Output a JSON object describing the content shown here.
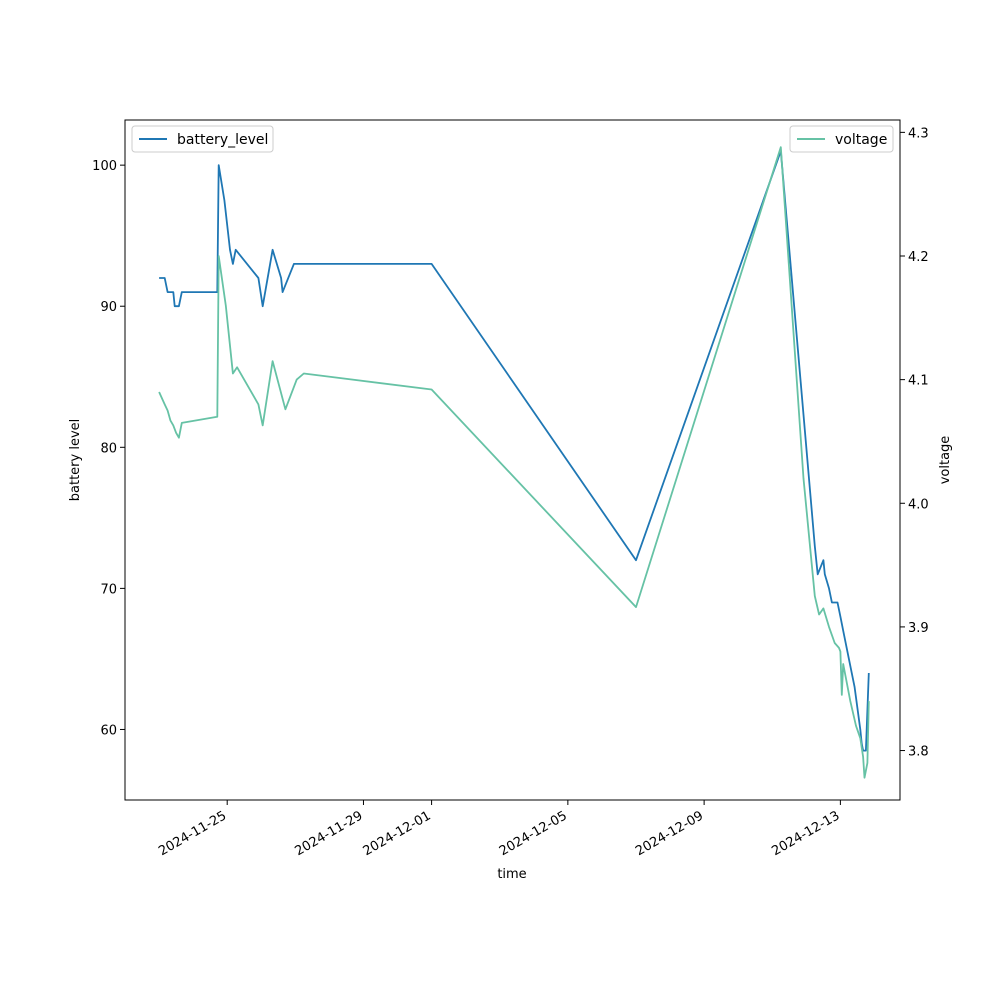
{
  "chart_data": {
    "type": "line",
    "title": "",
    "xlabel": "time",
    "ylabel": "battery level",
    "y2label": "voltage",
    "x_range": [
      "2024-11-22T00:00",
      "2024-12-14T18:00"
    ],
    "ylim": [
      55,
      103.2
    ],
    "y2lim": [
      3.76,
      4.31
    ],
    "x_ticks": [
      "2024-11-25",
      "2024-11-29",
      "2024-12-01",
      "2024-12-05",
      "2024-12-09",
      "2024-12-13"
    ],
    "y_ticks": [
      60,
      70,
      80,
      90,
      100
    ],
    "y2_ticks": [
      3.8,
      3.9,
      4.0,
      4.1,
      4.2,
      4.3
    ],
    "y2_tick_labels": [
      "3.8",
      "3.9",
      "4.0",
      "4.1",
      "4.2",
      "4.3"
    ],
    "grid": false,
    "legend_left": "top-left",
    "legend_right": "top-right",
    "series": [
      {
        "name": "battery_level",
        "axis": "left",
        "color": "#1f77b4",
        "points": [
          [
            "2024-11-23T00:00",
            92
          ],
          [
            "2024-11-23T04:00",
            92
          ],
          [
            "2024-11-23T06:00",
            91
          ],
          [
            "2024-11-23T10:00",
            91
          ],
          [
            "2024-11-23T11:00",
            90
          ],
          [
            "2024-11-23T14:00",
            90
          ],
          [
            "2024-11-23T16:00",
            91
          ],
          [
            "2024-11-24T17:00",
            91
          ],
          [
            "2024-11-24T18:00",
            100
          ],
          [
            "2024-11-24T22:00",
            97.5
          ],
          [
            "2024-11-25T02:00",
            94
          ],
          [
            "2024-11-25T04:00",
            93
          ],
          [
            "2024-11-25T06:00",
            94
          ],
          [
            "2024-11-25T22:00",
            92
          ],
          [
            "2024-11-26T01:00",
            90
          ],
          [
            "2024-11-26T08:00",
            94
          ],
          [
            "2024-11-26T14:00",
            92
          ],
          [
            "2024-11-26T15:00",
            91
          ],
          [
            "2024-11-26T23:00",
            93
          ],
          [
            "2024-12-01T00:00",
            93
          ],
          [
            "2024-12-07T00:00",
            72
          ],
          [
            "2024-12-11T06:00",
            101
          ],
          [
            "2024-12-12T06:00",
            73
          ],
          [
            "2024-12-12T08:00",
            71
          ],
          [
            "2024-12-12T12:00",
            72
          ],
          [
            "2024-12-12T13:00",
            71
          ],
          [
            "2024-12-12T16:00",
            70
          ],
          [
            "2024-12-12T18:00",
            69
          ],
          [
            "2024-12-12T22:00",
            69
          ],
          [
            "2024-12-13T00:00",
            68
          ],
          [
            "2024-12-13T02:00",
            67
          ],
          [
            "2024-12-13T06:00",
            65
          ],
          [
            "2024-12-13T10:00",
            63
          ],
          [
            "2024-12-13T14:00",
            60
          ],
          [
            "2024-12-13T15:00",
            59
          ],
          [
            "2024-12-13T16:00",
            58.5
          ],
          [
            "2024-12-13T18:00",
            58.5
          ],
          [
            "2024-12-13T20:00",
            64
          ]
        ]
      },
      {
        "name": "voltage",
        "axis": "right",
        "color": "#66c2a5",
        "points": [
          [
            "2024-11-23T00:00",
            4.09
          ],
          [
            "2024-11-23T04:00",
            4.08
          ],
          [
            "2024-11-23T06:00",
            4.075
          ],
          [
            "2024-11-23T08:00",
            4.067
          ],
          [
            "2024-11-23T10:00",
            4.063
          ],
          [
            "2024-11-23T12:00",
            4.057
          ],
          [
            "2024-11-23T14:00",
            4.053
          ],
          [
            "2024-11-23T16:00",
            4.065
          ],
          [
            "2024-11-24T17:00",
            4.07
          ],
          [
            "2024-11-24T18:00",
            4.2
          ],
          [
            "2024-11-24T23:00",
            4.16
          ],
          [
            "2024-11-25T04:00",
            4.105
          ],
          [
            "2024-11-25T07:00",
            4.11
          ],
          [
            "2024-11-25T22:00",
            4.08
          ],
          [
            "2024-11-26T01:00",
            4.063
          ],
          [
            "2024-11-26T08:00",
            4.115
          ],
          [
            "2024-11-26T17:00",
            4.076
          ],
          [
            "2024-11-27T01:00",
            4.1
          ],
          [
            "2024-11-27T06:00",
            4.105
          ],
          [
            "2024-12-01T00:00",
            4.092
          ],
          [
            "2024-12-07T00:00",
            3.916
          ],
          [
            "2024-12-11T06:00",
            4.288
          ],
          [
            "2024-12-11T22:00",
            4.02
          ],
          [
            "2024-12-12T06:00",
            3.925
          ],
          [
            "2024-12-12T09:00",
            3.91
          ],
          [
            "2024-12-12T12:00",
            3.915
          ],
          [
            "2024-12-12T16:00",
            3.9
          ],
          [
            "2024-12-12T20:00",
            3.887
          ],
          [
            "2024-12-12T23:00",
            3.883
          ],
          [
            "2024-12-13T00:00",
            3.88
          ],
          [
            "2024-12-13T01:00",
            3.845
          ],
          [
            "2024-12-13T02:00",
            3.87
          ],
          [
            "2024-12-13T07:00",
            3.84
          ],
          [
            "2024-12-13T11:00",
            3.82
          ],
          [
            "2024-12-13T14:00",
            3.81
          ],
          [
            "2024-12-13T16:00",
            3.795
          ],
          [
            "2024-12-13T17:00",
            3.778
          ],
          [
            "2024-12-13T19:00",
            3.79
          ],
          [
            "2024-12-13T20:00",
            3.84
          ]
        ]
      }
    ]
  }
}
